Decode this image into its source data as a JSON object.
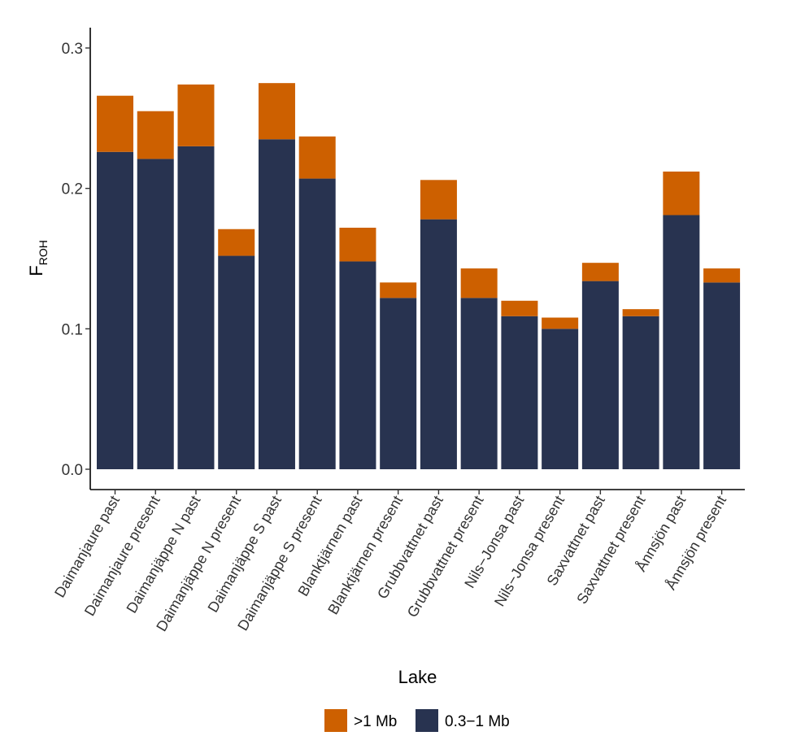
{
  "chart_data": {
    "type": "bar",
    "stacked": true,
    "title": "",
    "xlabel": "Lake",
    "ylabel_main": "F",
    "ylabel_sub": "ROH",
    "ylim": [
      0,
      0.31
    ],
    "yticks": [
      0.0,
      0.1,
      0.2,
      0.3
    ],
    "ytick_labels": [
      "0.0",
      "0.1",
      "0.2",
      "0.3"
    ],
    "grid": false,
    "legend_position": "bottom",
    "categories": [
      "Daimanjaure past",
      "Daimanjaure present",
      "Daimanjäppe N past",
      "Daimanjäppe N present",
      "Daimanjäppe S past",
      "Daimanjäppe S present",
      "Blanktjärnen past",
      "Blanktjärnen present",
      "Grubbvattnet past",
      "Grubbvattnet present",
      "Nils−Jonsa past",
      "Nils−Jonsa present",
      "Saxvattnet past",
      "Saxvattnet present",
      "Ånnsjön past",
      "Ånnsjön present"
    ],
    "series": [
      {
        "name": "0.3−1 Mb",
        "color": "#283350",
        "values": [
          0.226,
          0.221,
          0.23,
          0.152,
          0.235,
          0.207,
          0.148,
          0.122,
          0.178,
          0.122,
          0.109,
          0.1,
          0.134,
          0.109,
          0.181,
          0.133
        ]
      },
      {
        "name": ">1 Mb",
        "color": "#CD6000",
        "values": [
          0.04,
          0.034,
          0.044,
          0.019,
          0.04,
          0.03,
          0.024,
          0.011,
          0.028,
          0.021,
          0.011,
          0.008,
          0.013,
          0.005,
          0.031,
          0.01
        ]
      }
    ],
    "legend": [
      {
        "label": ">1 Mb",
        "color": "#CD6000"
      },
      {
        "label": "0.3−1 Mb",
        "color": "#283350"
      }
    ]
  }
}
